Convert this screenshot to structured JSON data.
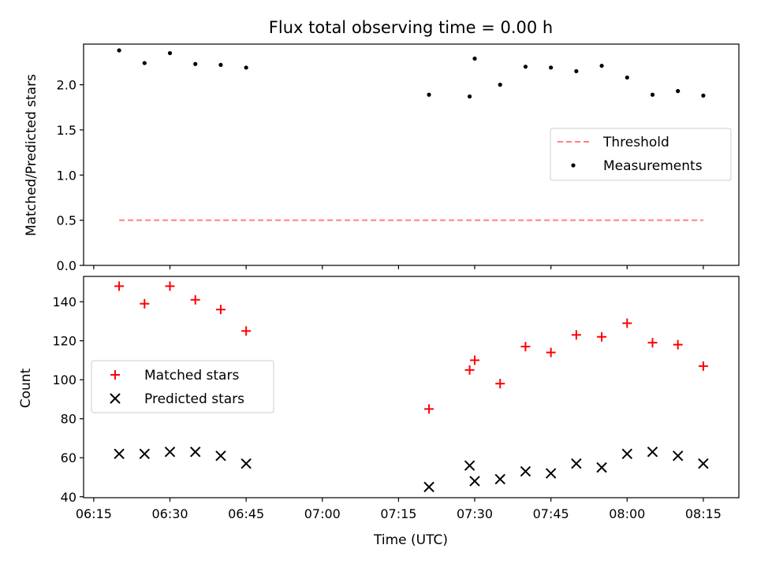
{
  "chart_data": [
    {
      "type": "scatter",
      "title": "Flux total observing time = 0.00 h",
      "xlabel": "",
      "ylabel": "Matched/Predicted stars",
      "xlim": [
        "06:13",
        "08:22"
      ],
      "ylim": [
        0,
        2.45
      ],
      "yticks": [
        "0.0",
        "0.5",
        "1.0",
        "1.5",
        "2.0"
      ],
      "threshold": {
        "value": 0.5,
        "x_start": "06:20",
        "x_end": "08:15",
        "color": "#ff7f7f"
      },
      "legend_position": "center-right",
      "legend": [
        "Threshold",
        "Measurements"
      ],
      "series": [
        {
          "name": "Measurements",
          "color": "#000000",
          "x": [
            "06:20",
            "06:25",
            "06:30",
            "06:35",
            "06:40",
            "06:45",
            "07:21",
            "07:29",
            "07:30",
            "07:35",
            "07:40",
            "07:45",
            "07:50",
            "07:55",
            "08:00",
            "08:05",
            "08:10",
            "08:15"
          ],
          "y": [
            2.38,
            2.24,
            2.35,
            2.23,
            2.22,
            2.19,
            1.89,
            1.87,
            2.29,
            2.0,
            2.2,
            2.19,
            2.15,
            2.21,
            2.08,
            1.89,
            1.93,
            1.88
          ]
        }
      ]
    },
    {
      "type": "scatter",
      "title": "",
      "xlabel": "Time (UTC)",
      "ylabel": "Count",
      "xlim": [
        "06:13",
        "08:22"
      ],
      "ylim": [
        39.5,
        153
      ],
      "yticks": [
        "40",
        "60",
        "80",
        "100",
        "120",
        "140"
      ],
      "xticks": [
        "06:15",
        "06:30",
        "06:45",
        "07:00",
        "07:15",
        "07:30",
        "07:45",
        "08:00",
        "08:15"
      ],
      "legend_position": "center-left",
      "legend": [
        "Matched stars",
        "Predicted stars"
      ],
      "series": [
        {
          "name": "Matched stars",
          "color": "#ff0000",
          "marker": "plus",
          "x": [
            "06:20",
            "06:25",
            "06:30",
            "06:35",
            "06:40",
            "06:45",
            "07:21",
            "07:29",
            "07:30",
            "07:35",
            "07:40",
            "07:45",
            "07:50",
            "07:55",
            "08:00",
            "08:05",
            "08:10",
            "08:15"
          ],
          "y": [
            148,
            139,
            148,
            141,
            136,
            125,
            85,
            105,
            110,
            98,
            117,
            114,
            123,
            122,
            129,
            119,
            118,
            107
          ]
        },
        {
          "name": "Predicted stars",
          "color": "#000000",
          "marker": "x",
          "x": [
            "06:20",
            "06:25",
            "06:30",
            "06:35",
            "06:40",
            "06:45",
            "07:21",
            "07:29",
            "07:30",
            "07:35",
            "07:40",
            "07:45",
            "07:50",
            "07:55",
            "08:00",
            "08:05",
            "08:10",
            "08:15"
          ],
          "y": [
            62,
            62,
            63,
            63,
            61,
            57,
            45,
            56,
            48,
            49,
            53,
            52,
            57,
            55,
            62,
            63,
            61,
            57
          ]
        }
      ]
    }
  ]
}
